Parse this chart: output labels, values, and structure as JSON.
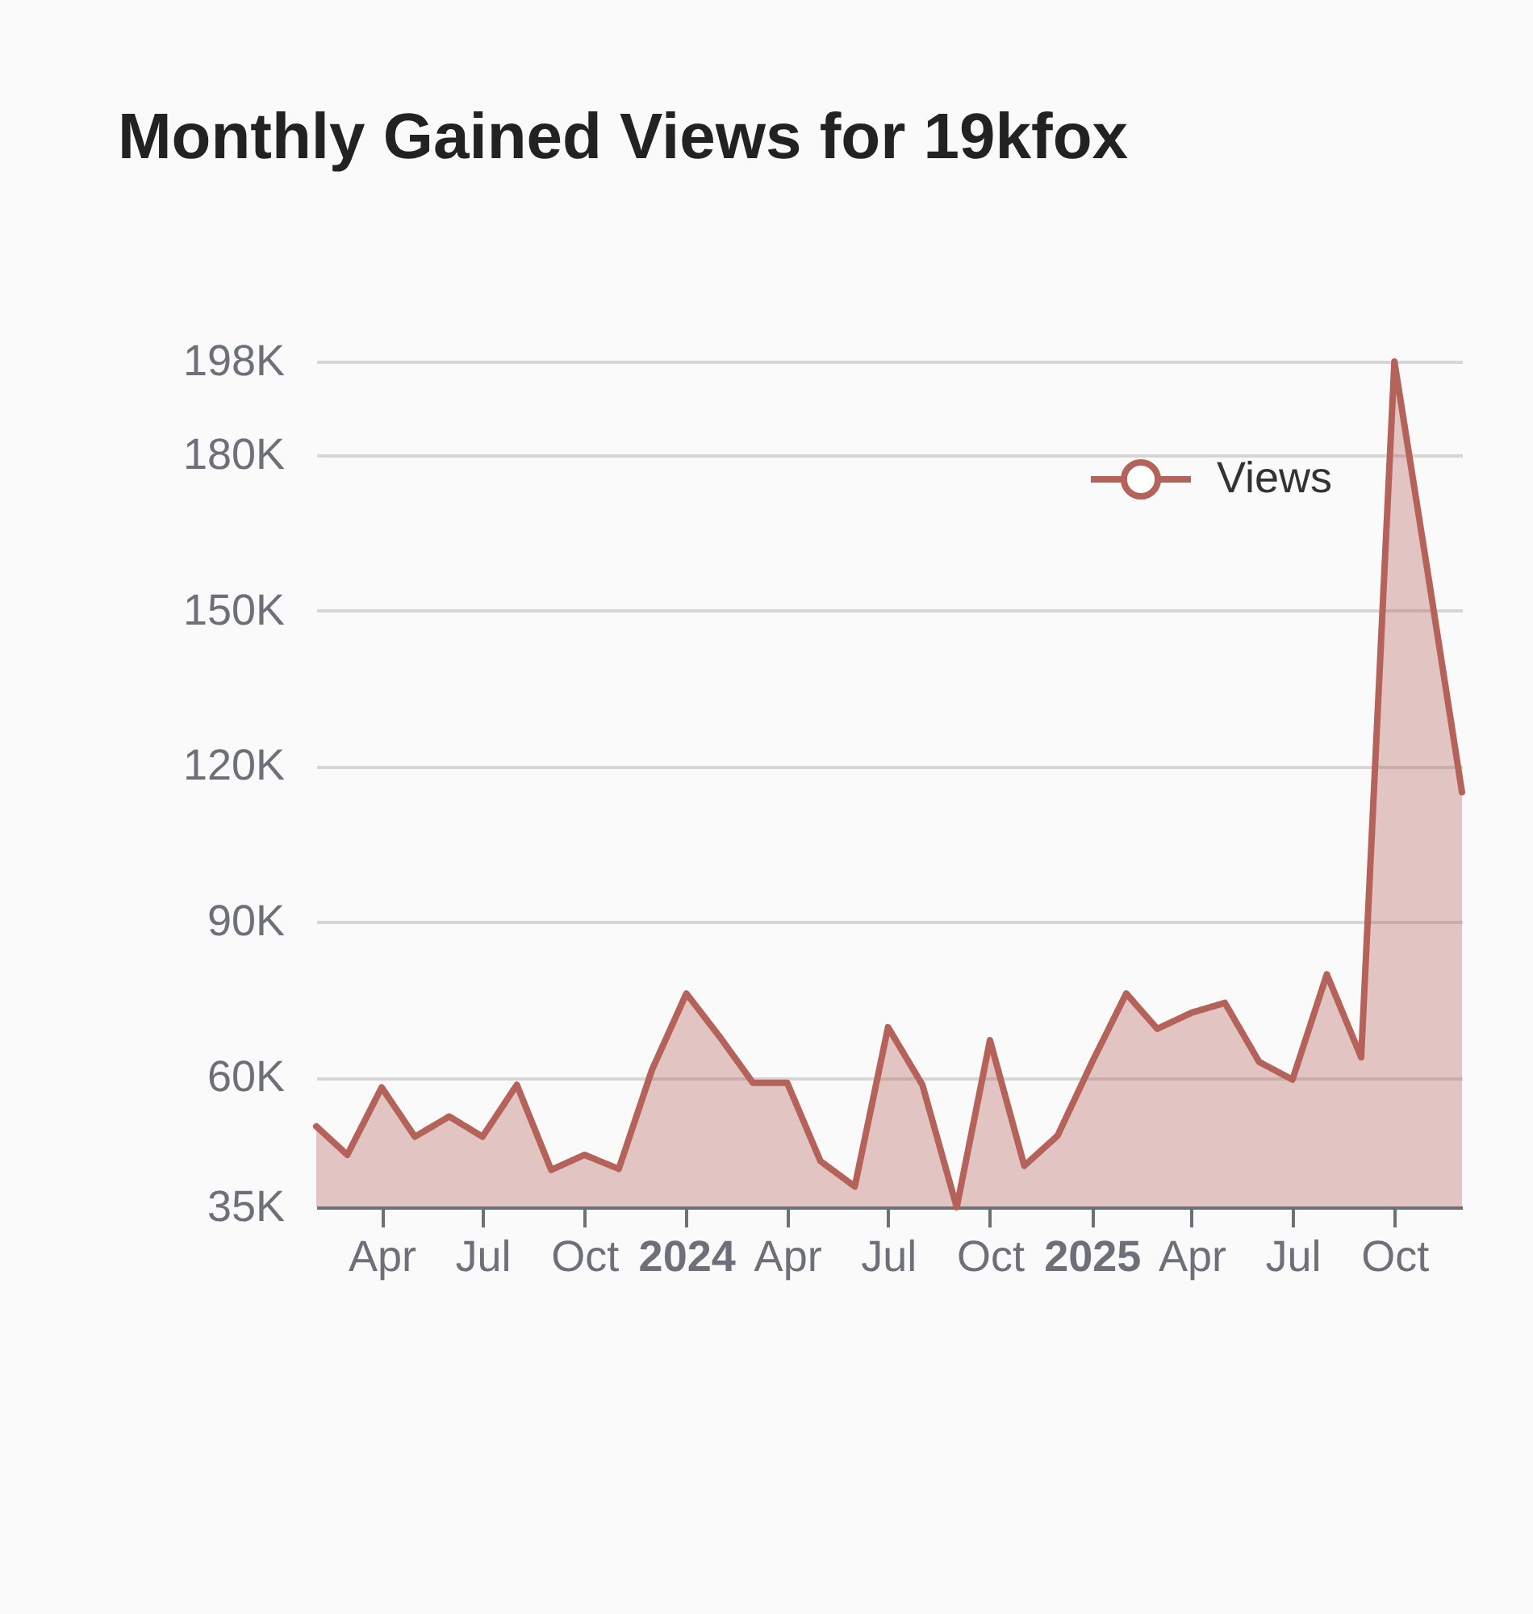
{
  "chart_data": {
    "type": "area",
    "title": "Monthly Gained Views for 19kfox",
    "x": [
      "2023-02",
      "2023-03",
      "2023-04",
      "2023-05",
      "2023-06",
      "2023-07",
      "2023-08",
      "2023-09",
      "2023-10",
      "2023-11",
      "2023-12",
      "2024-01",
      "2024-02",
      "2024-03",
      "2024-04",
      "2024-05",
      "2024-06",
      "2024-07",
      "2024-08",
      "2024-09",
      "2024-10",
      "2024-11",
      "2024-12",
      "2025-01",
      "2025-02",
      "2025-03",
      "2025-04",
      "2025-05",
      "2025-06",
      "2025-07",
      "2025-08",
      "2025-09",
      "2025-10",
      "2025-11",
      "2025-12"
    ],
    "series": [
      {
        "name": "Views",
        "color": "#b5625a",
        "values": [
          50600,
          45100,
          58100,
          48600,
          52500,
          48600,
          58600,
          42200,
          45100,
          42400,
          61500,
          76200,
          67600,
          59000,
          59000,
          43900,
          39000,
          69700,
          58600,
          35000,
          67200,
          43000,
          48800,
          62900,
          76200,
          69400,
          72500,
          74400,
          63000,
          59600,
          79900,
          63900,
          198000,
          156100,
          115000
        ]
      }
    ],
    "xlim": [
      "2023-02",
      "2025-12"
    ],
    "xticks": [
      {
        "value": "2023-04",
        "label": "Apr"
      },
      {
        "value": "2023-07",
        "label": "Jul"
      },
      {
        "value": "2023-10",
        "label": "Oct"
      },
      {
        "value": "2024-01",
        "label": "2024"
      },
      {
        "value": "2024-04",
        "label": "Apr"
      },
      {
        "value": "2024-07",
        "label": "Jul"
      },
      {
        "value": "2024-10",
        "label": "Oct"
      },
      {
        "value": "2025-01",
        "label": "2025"
      },
      {
        "value": "2025-04",
        "label": "Apr"
      },
      {
        "value": "2025-07",
        "label": "Jul"
      },
      {
        "value": "2025-10",
        "label": "Oct"
      }
    ],
    "ylim": [
      35000,
      198000
    ],
    "yticks": [
      {
        "value": 35000,
        "label": "35K"
      },
      {
        "value": 60000,
        "label": "60K"
      },
      {
        "value": 90000,
        "label": "90K"
      },
      {
        "value": 120000,
        "label": "120K"
      },
      {
        "value": 150000,
        "label": "150K"
      },
      {
        "value": 180000,
        "label": "180K"
      },
      {
        "value": 198000,
        "label": "198K"
      }
    ],
    "grid": "y",
    "legend": "top right",
    "line_style": "solid"
  }
}
